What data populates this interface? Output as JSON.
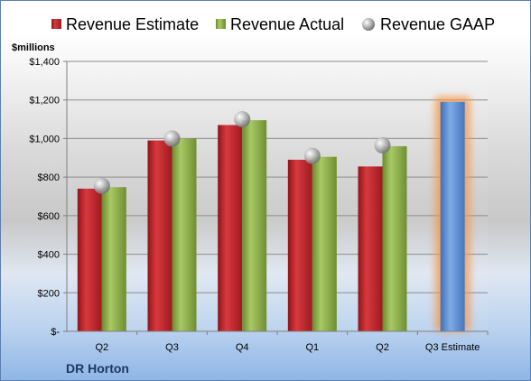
{
  "company": "DR Horton",
  "chart_data": {
    "type": "bar",
    "ylabel": "$millions",
    "ylim": [
      0,
      1400
    ],
    "yticks": [
      0,
      200,
      400,
      600,
      800,
      1000,
      1200,
      1400
    ],
    "ytick_labels": [
      "$-",
      "$200",
      "$400",
      "$600",
      "$800",
      "$1,000",
      "$1,200",
      "$1,400"
    ],
    "categories": [
      "Q2",
      "Q3",
      "Q4",
      "Q1",
      "Q2",
      "Q3 Estimate"
    ],
    "legend_position": "top",
    "grid": true,
    "series": [
      {
        "name": "Revenue Estimate",
        "kind": "bar",
        "color": "#c0282d",
        "values": [
          740,
          990,
          1070,
          890,
          855,
          null
        ]
      },
      {
        "name": "Revenue Actual",
        "kind": "bar",
        "color": "#8fb04a",
        "values": [
          748,
          1000,
          1095,
          905,
          960,
          null
        ]
      },
      {
        "name": "Revenue GAAP",
        "kind": "marker",
        "color": "#a6a6a6",
        "values": [
          755,
          1000,
          1100,
          910,
          965,
          null
        ]
      }
    ],
    "forecast": {
      "category": "Q3 Estimate",
      "value": 1190,
      "color": "#5b8fd6",
      "glow": "#f79646"
    }
  }
}
